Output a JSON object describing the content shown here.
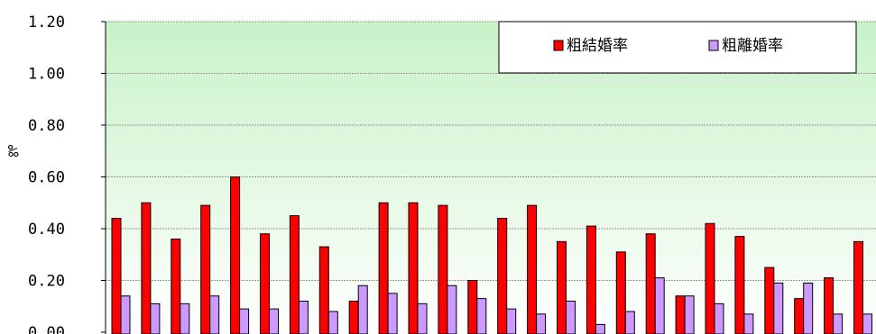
{
  "chart_data": {
    "type": "bar",
    "ylabel": "‰",
    "ylim": [
      0,
      1.2
    ],
    "yticks": [
      "0.00",
      "0.20",
      "0.40",
      "0.60",
      "0.80",
      "1.00",
      "1.20"
    ],
    "grid": true,
    "legend_position": "top-right",
    "series": [
      {
        "name": "粗結婚率",
        "color": "#ff0000",
        "values": [
          0.44,
          0.5,
          0.36,
          0.49,
          0.6,
          0.38,
          0.45,
          0.33,
          0.12,
          0.5,
          0.5,
          0.49,
          0.2,
          0.44,
          0.49,
          0.35,
          0.41,
          0.31,
          0.38,
          0.14,
          0.42,
          0.37,
          0.25,
          0.13,
          0.21,
          0.35
        ]
      },
      {
        "name": "粗離婚率",
        "color": "#cc99ff",
        "values": [
          0.14,
          0.11,
          0.11,
          0.14,
          0.09,
          0.09,
          0.12,
          0.08,
          0.18,
          0.15,
          0.11,
          0.18,
          0.13,
          0.09,
          0.07,
          0.12,
          0.03,
          0.08,
          0.21,
          0.14,
          0.11,
          0.07,
          0.19,
          0.19,
          0.07,
          0.07
        ]
      }
    ]
  }
}
